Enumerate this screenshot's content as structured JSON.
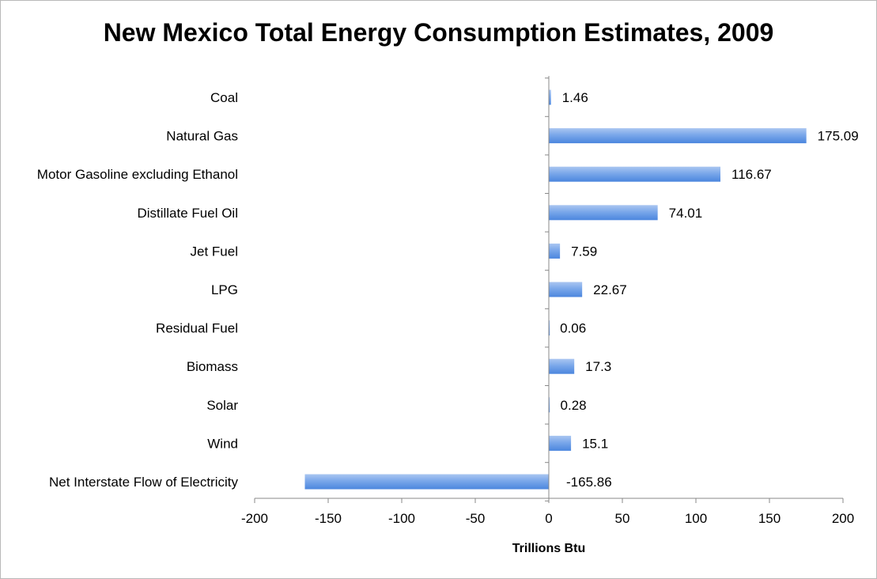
{
  "chart_data": {
    "type": "bar",
    "orientation": "horizontal",
    "title": "New Mexico Total Energy Consumption Estimates, 2009",
    "xlabel": "Trillions Btu",
    "ylabel": "",
    "categories": [
      "Coal",
      "Natural Gas",
      "Motor Gasoline excluding Ethanol",
      "Distillate Fuel Oil",
      "Jet Fuel",
      "LPG",
      "Residual Fuel",
      "Biomass",
      "Solar",
      "Wind",
      "Net Interstate Flow of Electricity"
    ],
    "values": [
      1.46,
      175.09,
      116.67,
      74.01,
      7.59,
      22.67,
      0.06,
      17.3,
      0.28,
      15.1,
      -165.86
    ],
    "value_labels": [
      "1.46",
      "175.09",
      "116.67",
      "74.01",
      "7.59",
      "22.67",
      "0.06",
      "17.3",
      "0.28",
      "15.1",
      "-165.86"
    ],
    "xlim": [
      -200,
      200
    ],
    "xticks": [
      -200,
      -150,
      -100,
      -50,
      0,
      50,
      100,
      150,
      200
    ],
    "grid": false,
    "legend": "none",
    "colors": {
      "bar_top": "#aac6f1",
      "bar_bottom": "#4b86de",
      "axis": "#888888"
    }
  }
}
